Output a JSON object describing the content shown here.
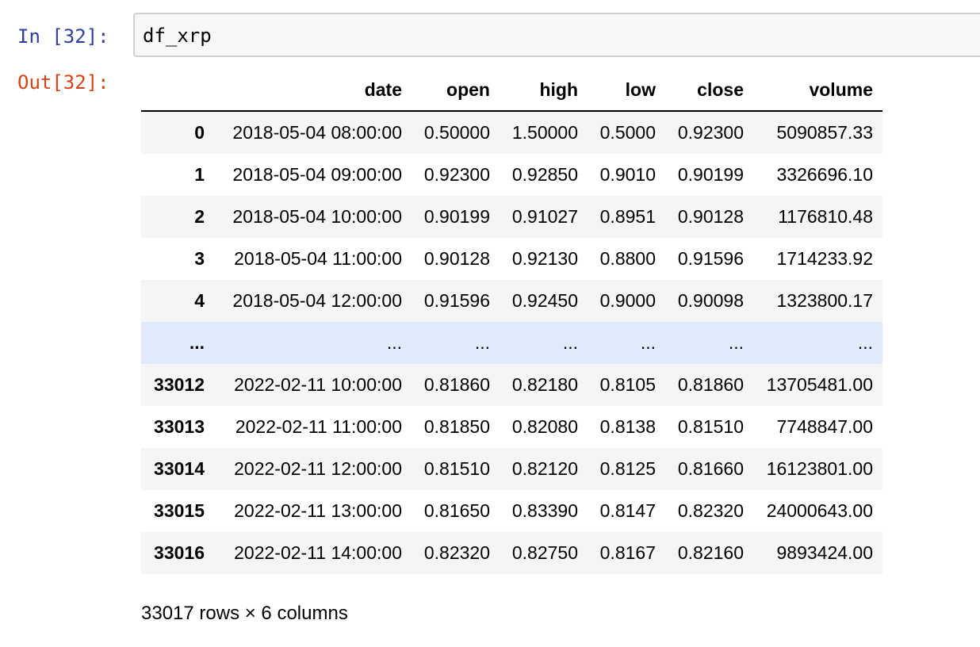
{
  "input_cell": {
    "prompt": "In [32]:",
    "code": "df_xrp"
  },
  "output_cell": {
    "prompt": "Out[32]:"
  },
  "dataframe": {
    "columns": [
      "",
      "date",
      "open",
      "high",
      "low",
      "close",
      "volume"
    ],
    "rows": [
      [
        "0",
        "2018-05-04 08:00:00",
        "0.50000",
        "1.50000",
        "0.5000",
        "0.92300",
        "5090857.33"
      ],
      [
        "1",
        "2018-05-04 09:00:00",
        "0.92300",
        "0.92850",
        "0.9010",
        "0.90199",
        "3326696.10"
      ],
      [
        "2",
        "2018-05-04 10:00:00",
        "0.90199",
        "0.91027",
        "0.8951",
        "0.90128",
        "1176810.48"
      ],
      [
        "3",
        "2018-05-04 11:00:00",
        "0.90128",
        "0.92130",
        "0.8800",
        "0.91596",
        "1714233.92"
      ],
      [
        "4",
        "2018-05-04 12:00:00",
        "0.91596",
        "0.92450",
        "0.9000",
        "0.90098",
        "1323800.17"
      ],
      [
        "...",
        "...",
        "...",
        "...",
        "...",
        "...",
        "..."
      ],
      [
        "33012",
        "2022-02-11 10:00:00",
        "0.81860",
        "0.82180",
        "0.8105",
        "0.81860",
        "13705481.00"
      ],
      [
        "33013",
        "2022-02-11 11:00:00",
        "0.81850",
        "0.82080",
        "0.8138",
        "0.81510",
        "7748847.00"
      ],
      [
        "33014",
        "2022-02-11 12:00:00",
        "0.81510",
        "0.82120",
        "0.8125",
        "0.81660",
        "16123801.00"
      ],
      [
        "33015",
        "2022-02-11 13:00:00",
        "0.81650",
        "0.83390",
        "0.8147",
        "0.82320",
        "24000643.00"
      ],
      [
        "33016",
        "2022-02-11 14:00:00",
        "0.82320",
        "0.82750",
        "0.8167",
        "0.82160",
        "9893424.00"
      ]
    ],
    "summary": "33017 rows × 6 columns"
  },
  "colors": {
    "in_prompt": "#303f9f",
    "out_prompt": "#d84315",
    "stripe": "#f5f5f5",
    "ellipsis_highlight": "#dfeafa",
    "input_bg": "#f7f7f7"
  }
}
